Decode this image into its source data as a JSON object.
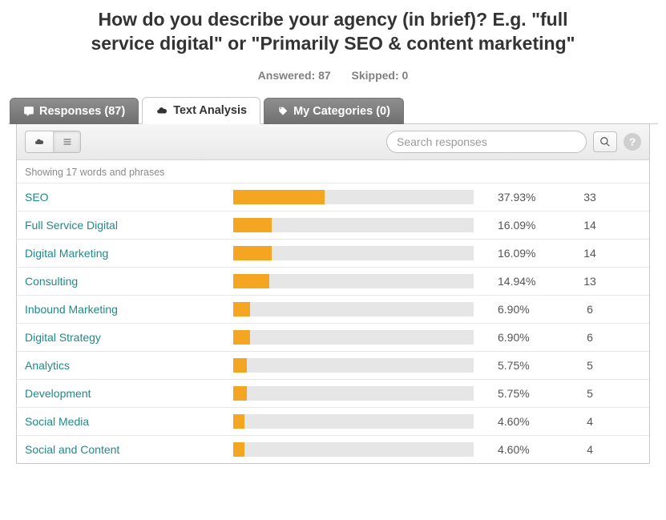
{
  "question": {
    "title": "How do you describe your agency (in brief)? E.g. \"full service digital\" or \"Primarily SEO & content marketing\"",
    "answered_label": "Answered:",
    "answered_count": 87,
    "skipped_label": "Skipped:",
    "skipped_count": 0
  },
  "tabs": {
    "responses": {
      "label": "Responses (87)"
    },
    "text_analysis": {
      "label": "Text Analysis"
    },
    "my_categories": {
      "label": "My Categories (0)"
    }
  },
  "toolbar": {
    "search_placeholder": "Search responses"
  },
  "summary": "Showing 17 words and phrases",
  "chart": {
    "type": "bar",
    "bar_color": "#f4a522",
    "bar_track_color": "#e6e6e6",
    "bar_max_percent": 100,
    "term_color": "#1f8a8a",
    "value_color": "#555555",
    "divider_color": "#e7e7e7",
    "rows": [
      {
        "term": "SEO",
        "percent": "37.93%",
        "percent_value": 37.93,
        "count": 33
      },
      {
        "term": "Full Service Digital",
        "percent": "16.09%",
        "percent_value": 16.09,
        "count": 14
      },
      {
        "term": "Digital Marketing",
        "percent": "16.09%",
        "percent_value": 16.09,
        "count": 14
      },
      {
        "term": "Consulting",
        "percent": "14.94%",
        "percent_value": 14.94,
        "count": 13
      },
      {
        "term": "Inbound Marketing",
        "percent": "6.90%",
        "percent_value": 6.9,
        "count": 6
      },
      {
        "term": "Digital Strategy",
        "percent": "6.90%",
        "percent_value": 6.9,
        "count": 6
      },
      {
        "term": "Analytics",
        "percent": "5.75%",
        "percent_value": 5.75,
        "count": 5
      },
      {
        "term": "Development",
        "percent": "5.75%",
        "percent_value": 5.75,
        "count": 5
      },
      {
        "term": "Social Media",
        "percent": "4.60%",
        "percent_value": 4.6,
        "count": 4
      },
      {
        "term": "Social and Content",
        "percent": "4.60%",
        "percent_value": 4.6,
        "count": 4
      }
    ]
  }
}
